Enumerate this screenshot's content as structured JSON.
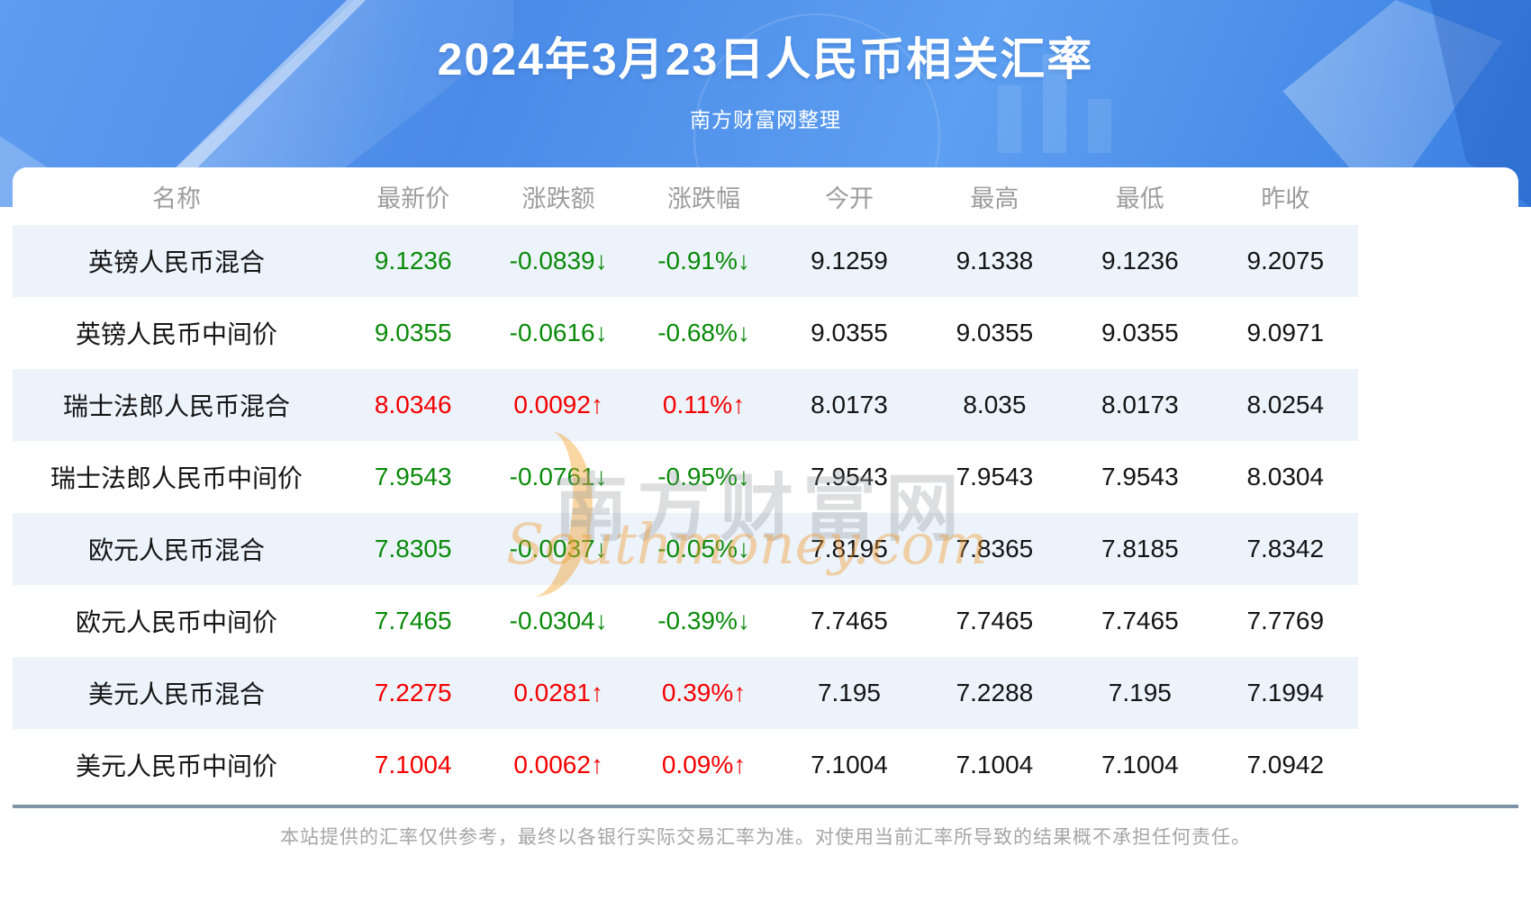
{
  "header": {
    "title": "2024年3月23日人民币相关汇率",
    "subtitle": "南方财富网整理"
  },
  "watermark": {
    "cn": "南方财富网",
    "en": "Southmoney.com"
  },
  "table": {
    "columns": [
      "名称",
      "最新价",
      "涨跌额",
      "涨跌幅",
      "今开",
      "最高",
      "最低",
      "昨收"
    ],
    "rows": [
      {
        "name": "英镑人民币混合",
        "latest": "9.1236",
        "change": "-0.0839↓",
        "change_pct": "-0.91%↓",
        "open": "9.1259",
        "high": "9.1338",
        "low": "9.1236",
        "prev_close": "9.2075",
        "direction": "down"
      },
      {
        "name": "英镑人民币中间价",
        "latest": "9.0355",
        "change": "-0.0616↓",
        "change_pct": "-0.68%↓",
        "open": "9.0355",
        "high": "9.0355",
        "low": "9.0355",
        "prev_close": "9.0971",
        "direction": "down"
      },
      {
        "name": "瑞士法郎人民币混合",
        "latest": "8.0346",
        "change": "0.0092↑",
        "change_pct": "0.11%↑",
        "open": "8.0173",
        "high": "8.035",
        "low": "8.0173",
        "prev_close": "8.0254",
        "direction": "up"
      },
      {
        "name": "瑞士法郎人民币中间价",
        "latest": "7.9543",
        "change": "-0.0761↓",
        "change_pct": "-0.95%↓",
        "open": "7.9543",
        "high": "7.9543",
        "low": "7.9543",
        "prev_close": "8.0304",
        "direction": "down"
      },
      {
        "name": "欧元人民币混合",
        "latest": "7.8305",
        "change": "-0.0037↓",
        "change_pct": "-0.05%↓",
        "open": "7.8195",
        "high": "7.8365",
        "low": "7.8185",
        "prev_close": "7.8342",
        "direction": "down"
      },
      {
        "name": "欧元人民币中间价",
        "latest": "7.7465",
        "change": "-0.0304↓",
        "change_pct": "-0.39%↓",
        "open": "7.7465",
        "high": "7.7465",
        "low": "7.7465",
        "prev_close": "7.7769",
        "direction": "down"
      },
      {
        "name": "美元人民币混合",
        "latest": "7.2275",
        "change": "0.0281↑",
        "change_pct": "0.39%↑",
        "open": "7.195",
        "high": "7.2288",
        "low": "7.195",
        "prev_close": "7.1994",
        "direction": "up"
      },
      {
        "name": "美元人民币中间价",
        "latest": "7.1004",
        "change": "0.0062↑",
        "change_pct": "0.09%↑",
        "open": "7.1004",
        "high": "7.1004",
        "low": "7.1004",
        "prev_close": "7.0942",
        "direction": "up"
      }
    ]
  },
  "footer": {
    "disclaimer": "本站提供的汇率仅供参考，最终以各银行实际交易汇率为准。对使用当前汇率所导致的结果概不承担任何责任。"
  },
  "colors": {
    "up_red": "#f50000",
    "down_green": "#0a8a0a",
    "row_alt_bg": "#ecf3fb",
    "divider": "#7f94a8",
    "header_text": "#9c9c9c",
    "body_text": "#141414",
    "hero_blue": "#4a8be8",
    "watermark_orange": "#f29b2d"
  }
}
